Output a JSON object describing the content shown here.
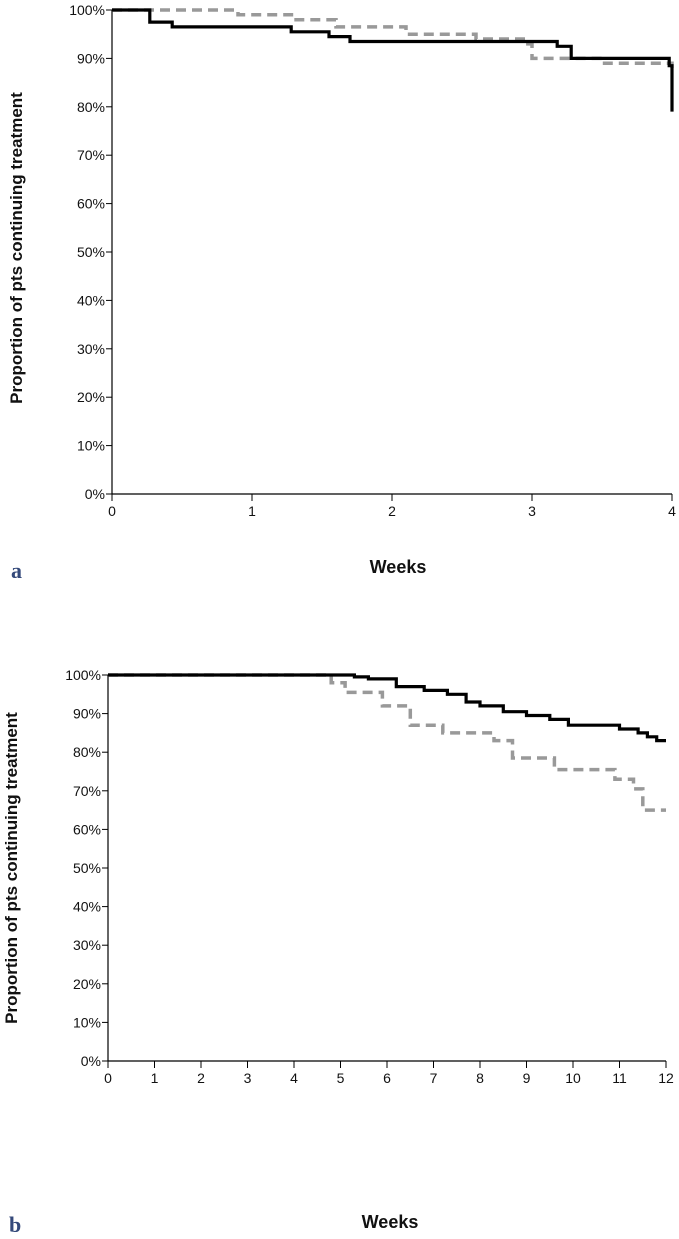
{
  "chart_data": [
    {
      "type": "line",
      "panel_label": "a",
      "xlabel": "Weeks",
      "ylabel": "Proportion of pts continuing treatment",
      "xlim": [
        0,
        4
      ],
      "ylim": [
        0,
        100
      ],
      "x_ticks": [
        "0",
        "1",
        "2",
        "3",
        "4"
      ],
      "y_ticks": [
        "0%",
        "10%",
        "20%",
        "30%",
        "40%",
        "50%",
        "60%",
        "70%",
        "80%",
        "90%",
        "100%"
      ],
      "grid": false,
      "series": [
        {
          "style": "solid",
          "color": "#000000",
          "x": [
            0,
            0.27,
            0.27,
            0.43,
            0.43,
            1.28,
            1.28,
            1.55,
            1.55,
            1.7,
            1.7,
            3.18,
            3.18,
            3.28,
            3.28,
            3.98,
            3.98,
            4.0,
            4.0
          ],
          "y": [
            100,
            100,
            97.5,
            97.5,
            96.5,
            96.5,
            95.5,
            95.5,
            94.5,
            94.5,
            93.5,
            93.5,
            92.5,
            92.5,
            90,
            90,
            88.5,
            88.5,
            79
          ]
        },
        {
          "style": "dashed",
          "color": "#999999",
          "x": [
            0,
            0.9,
            0.9,
            1.3,
            1.3,
            1.6,
            1.6,
            2.1,
            2.1,
            2.6,
            2.6,
            2.95,
            2.95,
            3.0,
            3.0,
            3.5,
            3.5,
            4.0,
            4.0
          ],
          "y": [
            100,
            100,
            99,
            99,
            98,
            98,
            96.5,
            96.5,
            95,
            95,
            94,
            94,
            93,
            93,
            90,
            90,
            89,
            89,
            88
          ]
        }
      ]
    },
    {
      "type": "line",
      "panel_label": "b",
      "xlabel": "Weeks",
      "ylabel": "Proportion of pts continuing treatment",
      "xlim": [
        0,
        12
      ],
      "ylim": [
        0,
        100
      ],
      "x_ticks": [
        "0",
        "1",
        "2",
        "3",
        "4",
        "5",
        "6",
        "7",
        "8",
        "9",
        "10",
        "11",
        "12"
      ],
      "y_ticks": [
        "0%",
        "10%",
        "20%",
        "30%",
        "40%",
        "50%",
        "60%",
        "70%",
        "80%",
        "90%",
        "100%"
      ],
      "grid": false,
      "series": [
        {
          "style": "solid",
          "color": "#000000",
          "x": [
            0,
            5.3,
            5.3,
            5.6,
            5.6,
            6.2,
            6.2,
            6.8,
            6.8,
            7.3,
            7.3,
            7.7,
            7.7,
            8.0,
            8.0,
            8.5,
            8.5,
            9.0,
            9.0,
            9.5,
            9.5,
            9.9,
            9.9,
            11.0,
            11.0,
            11.4,
            11.4,
            11.6,
            11.6,
            11.8,
            11.8,
            12.0
          ],
          "y": [
            100,
            100,
            99.5,
            99.5,
            99,
            99,
            97,
            97,
            96,
            96,
            95,
            95,
            93,
            93,
            92,
            92,
            90.5,
            90.5,
            89.5,
            89.5,
            88.5,
            88.5,
            87,
            87,
            86,
            86,
            85,
            85,
            84,
            84,
            83,
            83
          ]
        },
        {
          "style": "dashed",
          "color": "#999999",
          "x": [
            0,
            4.8,
            4.8,
            5.1,
            5.1,
            5.9,
            5.9,
            6.5,
            6.5,
            7.2,
            7.2,
            8.3,
            8.3,
            8.7,
            8.7,
            9.6,
            9.6,
            10.9,
            10.9,
            11.3,
            11.3,
            11.5,
            11.5,
            12.0
          ],
          "y": [
            100,
            100,
            98,
            98,
            95.5,
            95.5,
            92,
            92,
            87,
            87,
            85,
            85,
            83,
            83,
            78.5,
            78.5,
            75.5,
            75.5,
            73,
            73,
            70.5,
            70.5,
            65,
            65
          ]
        }
      ]
    }
  ]
}
